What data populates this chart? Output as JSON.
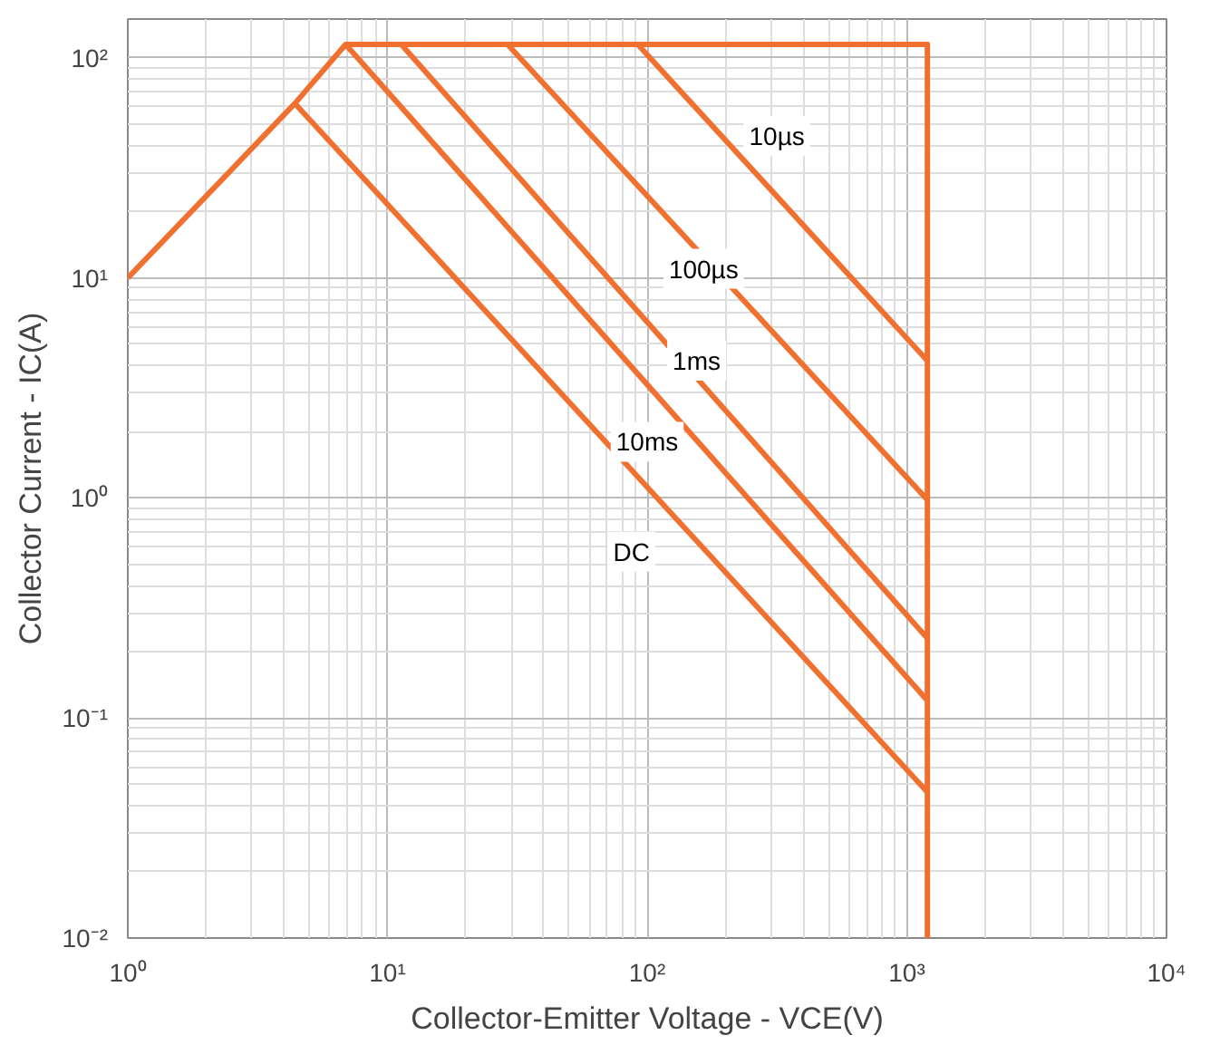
{
  "chart_data": {
    "type": "line",
    "xlabel": "Collector-Emitter Voltage - VCE(V)",
    "ylabel": "Collector Current - IC(A)",
    "log": "xy",
    "grid": true,
    "marker": "none",
    "line_style": "solid",
    "xlim": [
      1,
      10000
    ],
    "ylim": [
      0.01,
      150
    ],
    "xticks": [
      {
        "value": 1,
        "label": "10⁰"
      },
      {
        "value": 10,
        "label": "10¹"
      },
      {
        "value": 100,
        "label": "10²"
      },
      {
        "value": 1000,
        "label": "10³"
      },
      {
        "value": 10000,
        "label": "10⁴"
      }
    ],
    "yticks": [
      {
        "value": 0.01,
        "label": "10⁻²"
      },
      {
        "value": 0.1,
        "label": "10⁻¹"
      },
      {
        "value": 1,
        "label": "10⁰"
      },
      {
        "value": 10,
        "label": "10¹"
      },
      {
        "value": 100,
        "label": "10²"
      }
    ],
    "series": [
      {
        "color": "#f07030",
        "x": [
          1,
          4.4,
          6.9,
          1200,
          1200
        ],
        "values": [
          10,
          62,
          115,
          115,
          0.01
        ]
      },
      {
        "color": "#f07030",
        "x": [
          4.4,
          1200
        ],
        "values": [
          62,
          0.046
        ]
      },
      {
        "color": "#f07030",
        "x": [
          6.9,
          1200
        ],
        "values": [
          115,
          0.12
        ]
      },
      {
        "color": "#f07030",
        "x": [
          11.3,
          1200
        ],
        "values": [
          115,
          0.23
        ]
      },
      {
        "color": "#f07030",
        "x": [
          29,
          1200
        ],
        "values": [
          115,
          0.98
        ]
      },
      {
        "color": "#f07030",
        "x": [
          92,
          1200
        ],
        "values": [
          115,
          4.2
        ]
      }
    ],
    "annotations": [
      {
        "text": "10µs",
        "x": 316,
        "y": 44
      },
      {
        "text": "100µs",
        "x": 165,
        "y": 11
      },
      {
        "text": "1ms",
        "x": 155,
        "y": 4.2
      },
      {
        "text": "10ms",
        "x": 100,
        "y": 1.8
      },
      {
        "text": "DC",
        "x": 87,
        "y": 0.57
      }
    ]
  }
}
